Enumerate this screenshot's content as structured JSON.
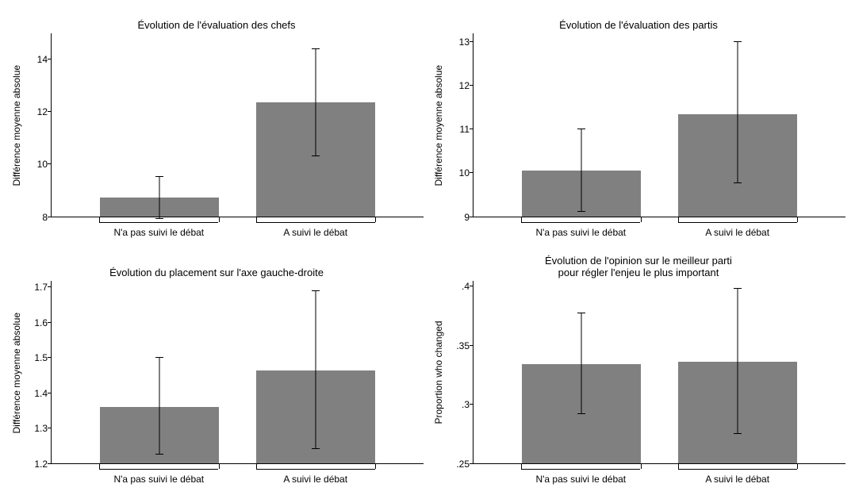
{
  "background_color": "#ffffff",
  "bar_color": "#808080",
  "axis_color": "#000000",
  "font_family": "Arial",
  "title_fontsize": 13,
  "label_fontsize": 12,
  "charts": [
    {
      "title": "Évolution de l'évaluation des chefs",
      "ylabel": "Différence moyenne absolue",
      "categories": [
        "N'a pas suivi le débat",
        "A suivi le débat"
      ],
      "values": [
        8.7,
        12.35
      ],
      "err_low": [
        7.9,
        10.3
      ],
      "err_high": [
        9.5,
        14.4
      ],
      "ymin": 8,
      "ymax": 15,
      "yticks": [
        8,
        10,
        12,
        14
      ],
      "ytick_labels": [
        "8",
        "10",
        "12",
        "14"
      ]
    },
    {
      "title": "Évolution de l'évaluation des partis",
      "ylabel": "Différence moyenne absolue",
      "categories": [
        "N'a pas suivi le débat",
        "A suivi le débat"
      ],
      "values": [
        10.05,
        11.35
      ],
      "err_low": [
        9.1,
        9.75
      ],
      "err_high": [
        11.0,
        13.0
      ],
      "ymin": 9,
      "ymax": 13.2,
      "yticks": [
        9,
        10,
        11,
        12,
        13
      ],
      "ytick_labels": [
        "9",
        "10",
        "11",
        "12",
        "13"
      ]
    },
    {
      "title": "Évolution du placement sur l'axe gauche-droite",
      "ylabel": "Différence moyenne absolue",
      "categories": [
        "N'a pas suivi le débat",
        "A suivi le débat"
      ],
      "values": [
        1.36,
        1.465
      ],
      "err_low": [
        1.225,
        1.24
      ],
      "err_high": [
        1.5,
        1.69
      ],
      "ymin": 1.2,
      "ymax": 1.72,
      "yticks": [
        1.2,
        1.3,
        1.4,
        1.5,
        1.6,
        1.7
      ],
      "ytick_labels": [
        "1.2",
        "1.3",
        "1.4",
        "1.5",
        "1.6",
        "1.7"
      ]
    },
    {
      "title": "Évolution de l'opinion sur le meilleur parti\npour régler l'enjeu le plus important",
      "ylabel": "Proportion who changed",
      "categories": [
        "N'a pas suivi le débat",
        "A suivi le débat"
      ],
      "values": [
        0.334,
        0.336
      ],
      "err_low": [
        0.292,
        0.275
      ],
      "err_high": [
        0.377,
        0.398
      ],
      "ymin": 0.25,
      "ymax": 0.405,
      "yticks": [
        0.25,
        0.3,
        0.35,
        0.4
      ],
      "ytick_labels": [
        ".25",
        ".3",
        ".35",
        ".4"
      ]
    }
  ],
  "bar_positions_pct": [
    13,
    55
  ],
  "bar_width_pct": 32
}
